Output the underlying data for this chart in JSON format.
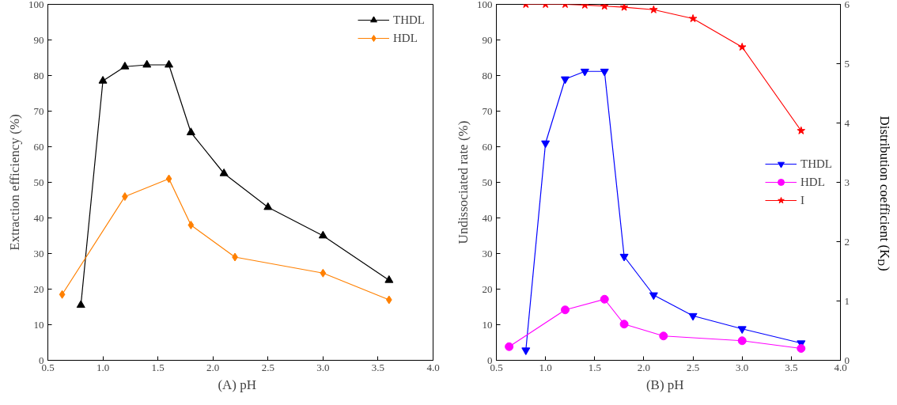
{
  "chart_data": [
    {
      "type": "line",
      "xlabel": "(A)   pH",
      "ylabel": "Extraction efficiency (%)",
      "xlim": [
        0.5,
        4.0
      ],
      "xticks": [
        0.5,
        {
          "value": 1,
          "label": "1.0"
        },
        1.5,
        {
          "value": 2,
          "label": "2.0"
        },
        2.5,
        {
          "value": 3,
          "label": "3.0"
        },
        3.5,
        {
          "value": 4,
          "label": "4.0"
        }
      ],
      "ylim": [
        0,
        100
      ],
      "yticks": [
        0,
        10,
        20,
        30,
        40,
        50,
        60,
        70,
        80,
        90,
        100
      ],
      "grid": false,
      "legend": "top right",
      "series": [
        {
          "name": "THDL",
          "color": "#000000",
          "marker": "triangle",
          "x": [
            0.8,
            1.0,
            1.2,
            1.4,
            1.6,
            1.8,
            2.1,
            2.5,
            3.0,
            3.6
          ],
          "values": [
            15.5,
            78.5,
            82.5,
            83,
            83,
            64,
            52.5,
            43,
            35,
            22.5
          ]
        },
        {
          "name": "HDL",
          "color": "#ff8000",
          "marker": "diamond",
          "x": [
            0.63,
            1.2,
            1.6,
            1.8,
            2.2,
            3.0,
            3.6
          ],
          "values": [
            18.5,
            46,
            51,
            38,
            29,
            24.5,
            17
          ]
        }
      ]
    },
    {
      "type": "line",
      "xlabel": "(B)   pH",
      "ylabel": "Undissociated rate (%)",
      "y2label": "Distribution coefficient (K$_{D}$)",
      "xlim": [
        0.5,
        4.0
      ],
      "xticks": [
        0.5,
        {
          "value": 1,
          "label": "1.0"
        },
        1.5,
        {
          "value": 2,
          "label": "2.0"
        },
        2.5,
        {
          "value": 3,
          "label": "3.0"
        },
        3.5,
        {
          "value": 4,
          "label": "4.0"
        }
      ],
      "ylim": [
        0,
        100
      ],
      "yticks": [
        0,
        10,
        20,
        30,
        40,
        50,
        60,
        70,
        80,
        90,
        100
      ],
      "y2lim": [
        0,
        6
      ],
      "y2ticks": [
        0,
        1,
        2,
        3,
        4,
        5,
        6
      ],
      "grid": false,
      "legend": "right",
      "series": [
        {
          "name": "THDL",
          "color": "#0000ff",
          "marker": "triangle_down",
          "axis": "y2",
          "x": [
            0.8,
            1.0,
            1.2,
            1.4,
            1.6,
            1.8,
            2.1,
            2.5,
            3.0,
            3.6
          ],
          "values": [
            0.17,
            3.66,
            4.74,
            4.87,
            4.87,
            1.75,
            1.1,
            0.75,
            0.53,
            0.29
          ]
        },
        {
          "name": "HDL",
          "color": "#ff00ff",
          "marker": "circle",
          "axis": "y2",
          "x": [
            0.63,
            1.2,
            1.6,
            1.8,
            2.2,
            3.0,
            3.6
          ],
          "values": [
            0.23,
            0.85,
            1.03,
            0.61,
            0.41,
            0.33,
            0.2
          ]
        },
        {
          "name": "I",
          "color": "#ff0000",
          "marker": "star",
          "x": [
            0.8,
            1.0,
            1.2,
            1.4,
            1.6,
            1.8,
            2.1,
            2.5,
            3.0,
            3.6
          ],
          "values": [
            100,
            100,
            100,
            99.8,
            99.5,
            99.2,
            98.5,
            96,
            88,
            64.5
          ]
        }
      ]
    }
  ]
}
